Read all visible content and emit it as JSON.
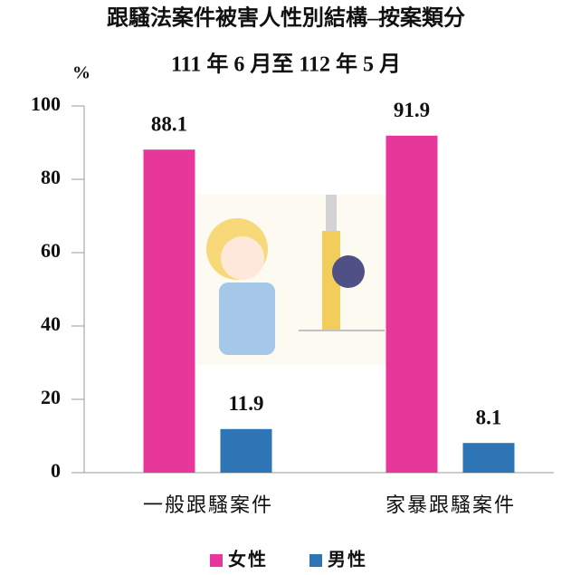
{
  "chart_data": {
    "type": "bar",
    "title": "跟騷法案件被害人性別結構–按案類分",
    "subtitle": "111 年 6 月至 112 年 5 月",
    "y_label": "%",
    "categories": [
      "一般跟騷案件",
      "家暴跟騷案件"
    ],
    "series": [
      {
        "name": "女性",
        "color": "#e8379b",
        "values": [
          88.1,
          91.9
        ]
      },
      {
        "name": "男性",
        "color": "#2e75b6",
        "values": [
          11.9,
          8.1
        ]
      }
    ],
    "ylim": [
      0,
      100
    ],
    "yticks": [
      0,
      20,
      40,
      60,
      80,
      100
    ],
    "legend": "bottom"
  }
}
